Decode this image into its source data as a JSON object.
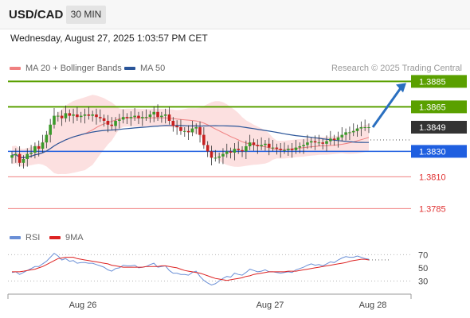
{
  "header": {
    "pair": "USD/CAD",
    "timeframe": "30 MIN"
  },
  "datetime": "Wednesday, August 27, 2025 1:03:57 PM CET",
  "legend": {
    "bollinger": {
      "label": "MA 20 + Bollinger Bands",
      "color": "#f08080"
    },
    "ma50": {
      "label": "MA 50",
      "color": "#2a5599"
    }
  },
  "research": "Research © 2025 Trading Central",
  "rsi_legend": {
    "rsi": {
      "label": "RSI",
      "color": "#6a8fd6"
    },
    "ma9": {
      "label": "9MA",
      "color": "#dd2222"
    }
  },
  "chart_data": {
    "type": "candlestick",
    "ylim": [
      1.3774,
      1.3894
    ],
    "x_ticks": [
      "Aug 26",
      "Aug 27",
      "Aug 28"
    ],
    "levels": [
      {
        "value": 1.3885,
        "label": "1.3885",
        "color": "#5aa000",
        "style": "resistance-box"
      },
      {
        "value": 1.3865,
        "label": "1.3865",
        "color": "#5aa000",
        "style": "resistance-box"
      },
      {
        "value": 1.3849,
        "label": "1.3849",
        "color": "#333333",
        "style": "current-box"
      },
      {
        "value": 1.383,
        "label": "1.3830",
        "color": "#1f5fe0",
        "style": "pivot-box"
      },
      {
        "value": 1.381,
        "label": "1.3810",
        "color": "#e03030",
        "style": "support-text"
      },
      {
        "value": 1.3785,
        "label": "1.3785",
        "color": "#e03030",
        "style": "support-text"
      }
    ],
    "closes": [
      1.3827,
      1.3828,
      1.3821,
      1.3824,
      1.3828,
      1.3829,
      1.3834,
      1.3832,
      1.3837,
      1.3843,
      1.3851,
      1.3858,
      1.3858,
      1.3856,
      1.386,
      1.3858,
      1.3859,
      1.3857,
      1.3858,
      1.3859,
      1.3858,
      1.3859,
      1.3857,
      1.3856,
      1.3854,
      1.3851,
      1.385,
      1.3854,
      1.3855,
      1.3857,
      1.3856,
      1.3857,
      1.3858,
      1.3856,
      1.3857,
      1.3857,
      1.3859,
      1.3861,
      1.3857,
      1.3858,
      1.3859,
      1.3854,
      1.385,
      1.3849,
      1.3846,
      1.3846,
      1.3845,
      1.3848,
      1.3849,
      1.3843,
      1.3835,
      1.383,
      1.3825,
      1.3825,
      1.3826,
      1.3828,
      1.383,
      1.3829,
      1.3832,
      1.3831,
      1.383,
      1.3834,
      1.3837,
      1.3835,
      1.3834,
      1.3835,
      1.3836,
      1.3833,
      1.3833,
      1.3832,
      1.3831,
      1.3831,
      1.3832,
      1.3831,
      1.3833,
      1.3834,
      1.3835,
      1.3837,
      1.3838,
      1.3837,
      1.3837,
      1.3836,
      1.3838,
      1.384,
      1.3839,
      1.3841,
      1.3843,
      1.3845,
      1.3845,
      1.3846,
      1.3848,
      1.3849,
      1.3849,
      1.3849
    ],
    "indicators": {
      "rsi_ticks": [
        70,
        50,
        30
      ],
      "rsi": [
        43,
        44,
        40,
        43,
        46,
        49,
        52,
        52,
        56,
        60,
        66,
        72,
        68,
        62,
        64,
        60,
        61,
        57,
        58,
        58,
        57,
        57,
        55,
        53,
        51,
        47,
        45,
        49,
        50,
        54,
        53,
        53,
        54,
        50,
        51,
        52,
        55,
        57,
        51,
        52,
        53,
        46,
        42,
        42,
        40,
        40,
        39,
        43,
        45,
        37,
        31,
        27,
        24,
        26,
        30,
        34,
        37,
        36,
        42,
        40,
        39,
        43,
        48,
        46,
        44,
        45,
        47,
        44,
        44,
        43,
        42,
        43,
        44,
        43,
        47,
        49,
        51,
        54,
        56,
        54,
        55,
        53,
        56,
        59,
        58,
        62,
        65,
        67,
        66,
        66,
        68,
        66,
        64,
        63
      ],
      "rsi_ma9": [
        44,
        44,
        44,
        45,
        46,
        47,
        48,
        50,
        52,
        55,
        58,
        61,
        64,
        65,
        66,
        66,
        66,
        64,
        63,
        62,
        61,
        60,
        59,
        58,
        57,
        56,
        54,
        53,
        52,
        51,
        51,
        51,
        51,
        51,
        51,
        52,
        52,
        52,
        52,
        53,
        53,
        52,
        51,
        50,
        48,
        46,
        45,
        44,
        43,
        42,
        40,
        38,
        36,
        34,
        33,
        32,
        31,
        32,
        33,
        34,
        35,
        37,
        38,
        40,
        41,
        42,
        43,
        44,
        44,
        44,
        44,
        44,
        45,
        45,
        45,
        46,
        47,
        48,
        49,
        50,
        51,
        52,
        53,
        54,
        55,
        56,
        57,
        58,
        60,
        61,
        62,
        63,
        63,
        62
      ]
    }
  }
}
